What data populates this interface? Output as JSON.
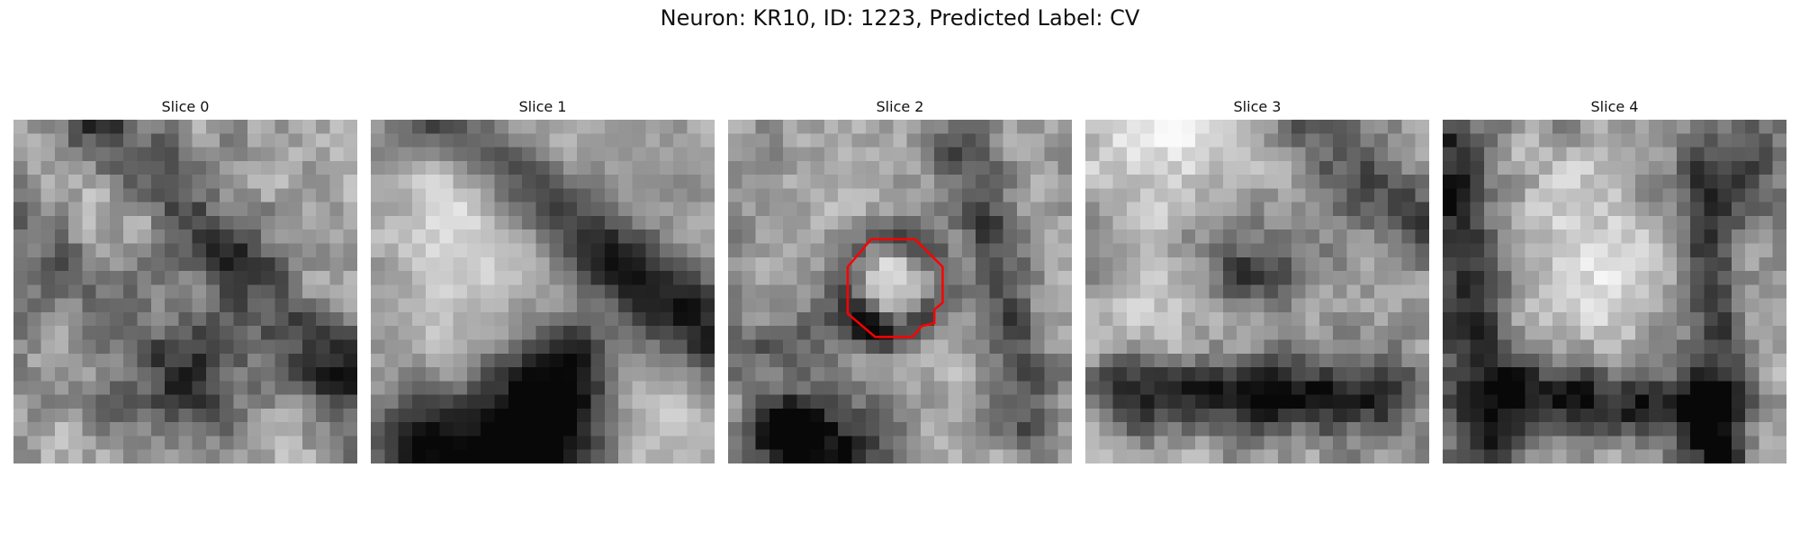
{
  "figure": {
    "title": "Neuron: KR10, ID: 1223, Predicted Label: CV"
  },
  "panels": [
    {
      "title": "Slice 0",
      "has_contour": false
    },
    {
      "title": "Slice 1",
      "has_contour": false
    },
    {
      "title": "Slice 2",
      "has_contour": true
    },
    {
      "title": "Slice 3",
      "has_contour": false
    },
    {
      "title": "Slice 4",
      "has_contour": false
    }
  ],
  "image": {
    "colormap": "grayscale",
    "grid_size": 25
  },
  "contour": {
    "color": "#ff0000",
    "panel": "Slice 2"
  }
}
